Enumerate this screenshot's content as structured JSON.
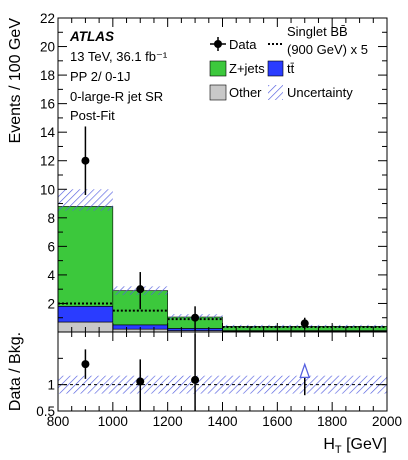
{
  "chart_data": [
    {
      "type": "bar",
      "panel": "main",
      "stacked": true,
      "ylabel": "Events / 100 GeV",
      "ylim": [
        0,
        22
      ],
      "yticks": [
        2,
        4,
        6,
        8,
        10,
        12,
        14,
        16,
        18,
        20,
        22
      ],
      "bin_edges": [
        800,
        1000,
        1200,
        1400,
        2000
      ],
      "xlim": [
        800,
        2000
      ],
      "series": [
        {
          "name": "Other",
          "color": "#c8c8c8",
          "values": [
            0.7,
            0.2,
            0.1,
            0.05
          ]
        },
        {
          "name": "tt̄",
          "color": "#2a3cff",
          "values": [
            1.1,
            0.3,
            0.15,
            0.05
          ]
        },
        {
          "name": "Z+jets",
          "color": "#3cc83c",
          "values": [
            7.0,
            2.4,
            0.8,
            0.3
          ]
        }
      ],
      "uncertainty": {
        "name": "Uncertainty",
        "up": [
          10.0,
          3.2,
          1.25,
          0.5
        ],
        "down": [
          8.5,
          2.6,
          0.9,
          0.3
        ]
      },
      "signal": {
        "name": "Singlet BB̄ (900 GeV) x 5",
        "values": [
          2.0,
          1.5,
          0.9,
          0.35
        ]
      },
      "data": {
        "name": "Data",
        "x": [
          900,
          1100,
          1300,
          1700
        ],
        "y": [
          12,
          3,
          1,
          0.6
        ],
        "err_low": [
          2.4,
          1.4,
          0.9,
          0.4
        ],
        "err_high": [
          2.4,
          1.2,
          0.8,
          0.4
        ]
      },
      "annotations": {
        "experiment": "ATLAS",
        "lines": [
          "13 TeV, 36.1 fb⁻¹",
          "PP 2/ 0-1J",
          "0-large-R jet SR",
          "Post-Fit"
        ]
      },
      "legend": {
        "placement": "top-right",
        "data": "Data",
        "signal_l1": "Singlet BB̄",
        "signal_l2": "(900 GeV) x 5",
        "zjets": "Z+jets",
        "ttbar": "tt̄",
        "other": "Other",
        "uncertainty": "Uncertainty"
      }
    },
    {
      "type": "scatter",
      "panel": "ratio",
      "ylabel": "Data / Bkg.",
      "ylim": [
        0.5,
        2
      ],
      "yticks": [
        0.5,
        1
      ],
      "xlabel": "H",
      "xlabel_sub": "T",
      "xlabel_unit": " [GeV]",
      "xticks": [
        800,
        1000,
        1200,
        1400,
        1600,
        1800,
        2000
      ],
      "x": [
        900,
        1100,
        1300
      ],
      "y": [
        1.39,
        1.06,
        1.09
      ],
      "err_low": [
        0.28,
        0.62,
        0.99
      ],
      "err_high": [
        0.28,
        0.42,
        0.88
      ],
      "arrow": {
        "x": 1700,
        "y": 1.31,
        "err_low": 0.51
      },
      "uncertainty_band": [
        0.83,
        1.17
      ]
    }
  ]
}
